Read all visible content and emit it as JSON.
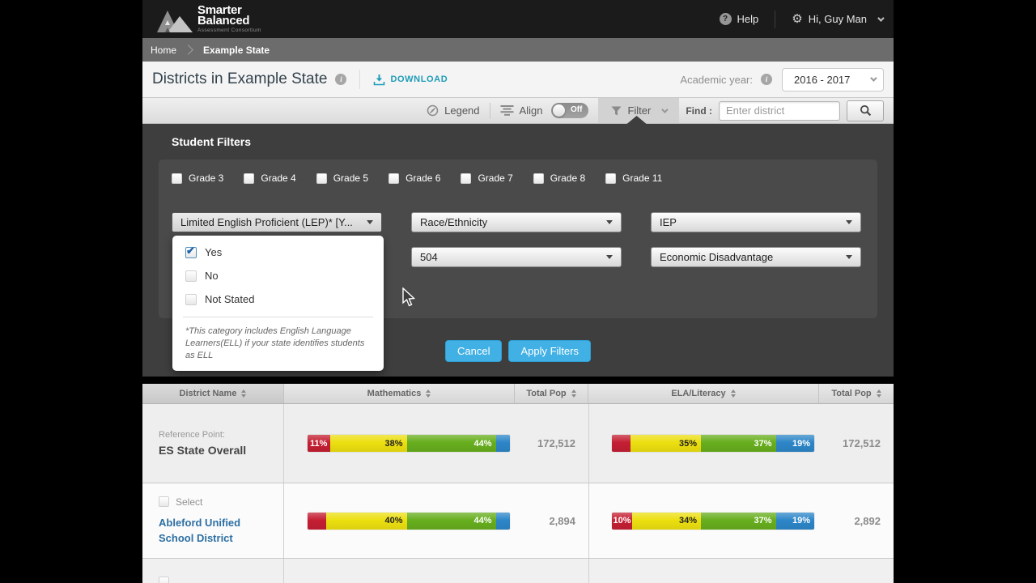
{
  "topbar": {
    "logo_line1": "Smarter",
    "logo_line2": "Balanced",
    "logo_subtitle": "Assessment Consortium",
    "help_label": "Help",
    "user_greeting": "Hi, Guy Man"
  },
  "breadcrumb": {
    "home": "Home",
    "current": "Example State"
  },
  "header": {
    "title": "Districts in Example State",
    "download_label": "DOWNLOAD",
    "academic_year_label": "Academic year:",
    "academic_year_value": "2016 - 2017"
  },
  "toolbar": {
    "legend_label": "Legend",
    "align_label": "Align",
    "align_state": "Off",
    "filter_label": "Filter",
    "find_label": "Find :",
    "find_placeholder": "Enter district"
  },
  "filters": {
    "title": "Student Filters",
    "grades": [
      "Grade 3",
      "Grade 4",
      "Grade 5",
      "Grade 6",
      "Grade 7",
      "Grade 8",
      "Grade 11"
    ],
    "lep_button_label": "Limited English Proficient (LEP)* [Y...",
    "lep_options": [
      {
        "label": "Yes",
        "checked": true
      },
      {
        "label": "No",
        "checked": false
      },
      {
        "label": "Not Stated",
        "checked": false
      }
    ],
    "lep_footnote": "*This category includes English Language Learners(ELL) if your state identifies students as ELL",
    "race_label": "Race/Ethnicity",
    "iep_label": "IEP",
    "s504_label": "504",
    "econ_label": "Economic Disadvantage",
    "cancel_label": "Cancel",
    "apply_label": "Apply Filters"
  },
  "palette": {
    "red": {
      "hex": "#c41f33",
      "text": "#ffffff"
    },
    "yellow": {
      "hex": "#ecdf10",
      "text": "#222222"
    },
    "green": {
      "hex": "#67ae1e",
      "text": "#ffffff"
    },
    "blue": {
      "hex": "#2d86c8",
      "text": "#ffffff"
    }
  },
  "table": {
    "columns": [
      "District Name",
      "Mathematics",
      "Total Pop",
      "ELA/Literacy",
      "Total Pop"
    ],
    "rows": [
      {
        "type": "reference",
        "label_small": "Reference Point:",
        "name": "ES State Overall",
        "math": {
          "segments": [
            {
              "pct": 11,
              "label": "11%",
              "color": "red"
            },
            {
              "pct": 38,
              "label": "38%",
              "color": "yellow"
            },
            {
              "pct": 44,
              "label": "44%",
              "color": "green"
            },
            {
              "pct": 7,
              "label": "",
              "color": "blue"
            }
          ],
          "total": "172,512"
        },
        "ela": {
          "segments": [
            {
              "pct": 9,
              "label": "",
              "color": "red"
            },
            {
              "pct": 35,
              "label": "35%",
              "color": "yellow"
            },
            {
              "pct": 37,
              "label": "37%",
              "color": "green"
            },
            {
              "pct": 19,
              "label": "19%",
              "color": "blue"
            }
          ],
          "total": "172,512"
        }
      },
      {
        "type": "district",
        "select_label": "Select",
        "name": "Ableford Unified School District",
        "math": {
          "segments": [
            {
              "pct": 9,
              "label": "",
              "color": "red"
            },
            {
              "pct": 40,
              "label": "40%",
              "color": "yellow"
            },
            {
              "pct": 44,
              "label": "44%",
              "color": "green"
            },
            {
              "pct": 7,
              "label": "",
              "color": "blue"
            }
          ],
          "total": "2,894"
        },
        "ela": {
          "segments": [
            {
              "pct": 10,
              "label": "10%",
              "color": "red"
            },
            {
              "pct": 34,
              "label": "34%",
              "color": "yellow"
            },
            {
              "pct": 37,
              "label": "37%",
              "color": "green"
            },
            {
              "pct": 19,
              "label": "19%",
              "color": "blue"
            }
          ],
          "total": "2,892"
        }
      }
    ]
  }
}
